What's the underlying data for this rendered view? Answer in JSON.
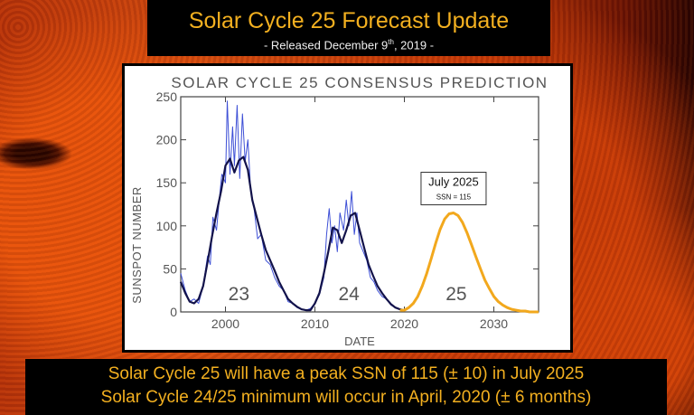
{
  "header": {
    "title": "Solar Cycle 25 Forecast Update",
    "subtitle_prefix": "- Released December 9",
    "subtitle_sup": "th",
    "subtitle_suffix": ", 2019 -"
  },
  "footer": {
    "line1": "Solar Cycle 25 will have a peak SSN of 115 (± 10) in July 2025",
    "line2": "Solar Cycle 24/25 minimum will occur in April, 2020 (± 6 months)"
  },
  "colors": {
    "title_text": "#f3b020",
    "monthly_series": "#3d4fd6",
    "smoothed_series": "#12124a",
    "prediction_series": "#f2a81d"
  },
  "chart_data": {
    "type": "line",
    "title": "SOLAR CYCLE 25 CONSENSUS PREDICTION",
    "xlabel": "DATE",
    "ylabel": "SUNSPOT NUMBER",
    "xlim": [
      1995,
      2035
    ],
    "ylim": [
      0,
      250
    ],
    "x_ticks": [
      2000,
      2010,
      2020,
      2030
    ],
    "y_ticks": [
      0,
      50,
      100,
      150,
      200,
      250
    ],
    "cycle_labels": [
      {
        "text": "23",
        "x": 2001.5,
        "y": 22
      },
      {
        "text": "24",
        "x": 2013.8,
        "y": 22
      },
      {
        "text": "25",
        "x": 2025.8,
        "y": 22
      }
    ],
    "annotation": {
      "title": "July 2025",
      "text": "SSN = 115",
      "x": 2025.5,
      "y": 115
    },
    "series": [
      {
        "kind": "monthly",
        "x": [
          1995.0,
          1995.5,
          1996.0,
          1996.5,
          1997.0,
          1997.5,
          1998.0,
          1998.3,
          1998.6,
          1999.0,
          1999.3,
          1999.6,
          2000.0,
          2000.2,
          2000.5,
          2000.8,
          2001.0,
          2001.3,
          2001.6,
          2001.9,
          2002.2,
          2002.5,
          2002.8,
          2003.2,
          2003.6,
          2004.0,
          2004.5,
          2005.0,
          2005.5,
          2006.0,
          2006.5,
          2007.0,
          2007.5,
          2008.0,
          2008.5,
          2009.0,
          2009.5,
          2010.0,
          2010.5,
          2011.0,
          2011.3,
          2011.6,
          2011.9,
          2012.2,
          2012.5,
          2012.8,
          2013.2,
          2013.5,
          2013.8,
          2014.1,
          2014.4,
          2014.7,
          2015.0,
          2015.4,
          2015.8,
          2016.2,
          2016.6,
          2017.0,
          2017.5,
          2018.0,
          2018.5,
          2019.0,
          2019.5,
          2019.9
        ],
        "y": [
          45,
          25,
          12,
          15,
          10,
          30,
          65,
          55,
          110,
          95,
          130,
          160,
          150,
          245,
          160,
          215,
          170,
          240,
          155,
          230,
          175,
          200,
          145,
          120,
          85,
          90,
          60,
          55,
          40,
          30,
          25,
          12,
          10,
          5,
          3,
          2,
          4,
          10,
          20,
          40,
          90,
          120,
          80,
          100,
          70,
          115,
          95,
          130,
          100,
          140,
          90,
          115,
          80,
          70,
          60,
          40,
          35,
          25,
          18,
          15,
          8,
          5,
          3,
          2
        ]
      },
      {
        "kind": "smoothed",
        "x": [
          1995.0,
          1995.5,
          1996.0,
          1996.5,
          1997.0,
          1997.5,
          1998.0,
          1998.5,
          1999.0,
          1999.5,
          2000.0,
          2000.5,
          2001.0,
          2001.5,
          2002.0,
          2002.5,
          2003.0,
          2003.5,
          2004.0,
          2004.5,
          2005.0,
          2005.5,
          2006.0,
          2006.5,
          2007.0,
          2007.5,
          2008.0,
          2008.5,
          2009.0,
          2009.5,
          2010.0,
          2010.5,
          2011.0,
          2011.5,
          2012.0,
          2012.5,
          2013.0,
          2013.5,
          2014.0,
          2014.5,
          2015.0,
          2015.5,
          2016.0,
          2016.5,
          2017.0,
          2017.5,
          2018.0,
          2018.5,
          2019.0,
          2019.5,
          2019.9
        ],
        "y": [
          35,
          22,
          12,
          10,
          15,
          30,
          58,
          88,
          115,
          140,
          170,
          178,
          162,
          176,
          180,
          165,
          130,
          110,
          90,
          72,
          60,
          48,
          35,
          25,
          15,
          10,
          6,
          3,
          2,
          2,
          10,
          22,
          45,
          70,
          98,
          95,
          80,
          95,
          112,
          115,
          95,
          75,
          55,
          42,
          30,
          22,
          15,
          9,
          5,
          3,
          2
        ]
      },
      {
        "kind": "prediction",
        "x": [
          2019.5,
          2020.0,
          2020.5,
          2021.0,
          2021.5,
          2022.0,
          2022.5,
          2023.0,
          2023.5,
          2024.0,
          2024.5,
          2025.0,
          2025.5,
          2026.0,
          2026.5,
          2027.0,
          2027.5,
          2028.0,
          2028.5,
          2029.0,
          2029.5,
          2030.0,
          2030.5,
          2031.0,
          2031.5,
          2032.0,
          2032.5,
          2033.0,
          2033.5,
          2034.0,
          2034.5,
          2035.0
        ],
        "y": [
          2,
          2,
          5,
          10,
          18,
          30,
          45,
          62,
          80,
          96,
          108,
          114,
          115,
          112,
          104,
          92,
          78,
          64,
          50,
          37,
          27,
          18,
          12,
          8,
          5,
          3,
          2,
          1,
          1,
          0,
          0,
          0
        ]
      }
    ]
  }
}
